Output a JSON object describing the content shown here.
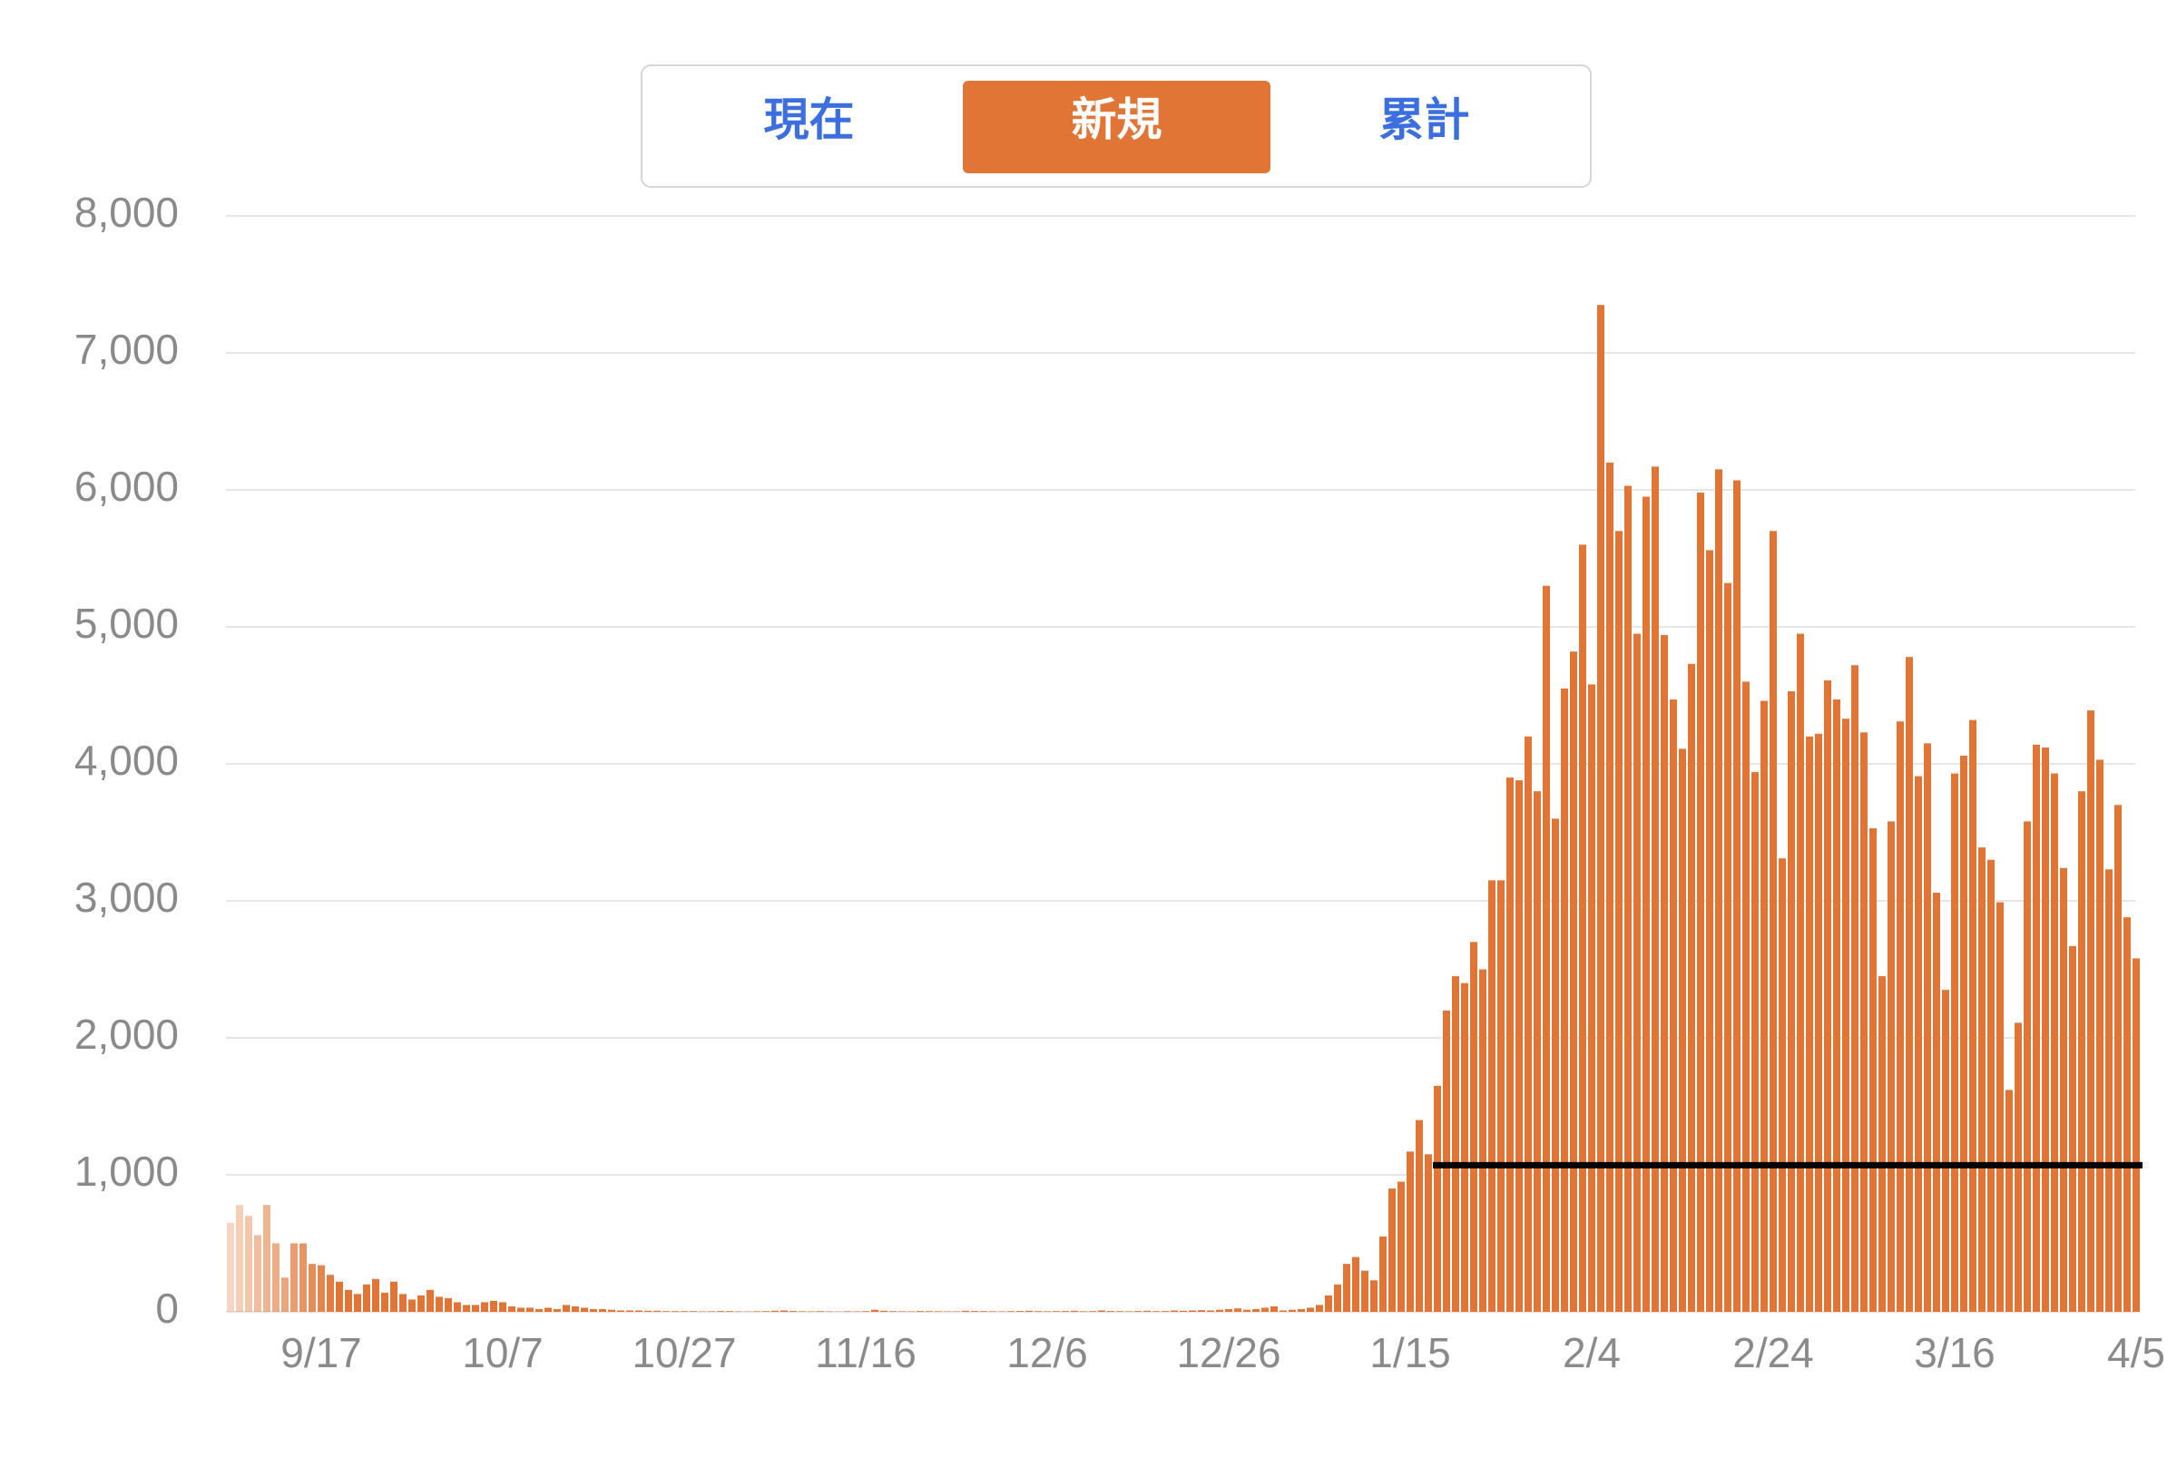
{
  "chart_data": {
    "type": "bar",
    "tabs": [
      "現在",
      "新規",
      "累計"
    ],
    "selected_tab": 1,
    "color": "#e07535",
    "grid": true,
    "categories": [
      null,
      null,
      null,
      null,
      null,
      null,
      null,
      null,
      null,
      null,
      "9/17",
      null,
      null,
      null,
      null,
      null,
      null,
      null,
      null,
      null,
      null,
      null,
      null,
      null,
      null,
      null,
      null,
      null,
      null,
      null,
      "10/7",
      null,
      null,
      null,
      null,
      null,
      null,
      null,
      null,
      null,
      null,
      null,
      null,
      null,
      null,
      null,
      null,
      null,
      null,
      null,
      "10/27",
      null,
      null,
      null,
      null,
      null,
      null,
      null,
      null,
      null,
      null,
      null,
      null,
      null,
      null,
      null,
      null,
      null,
      null,
      null,
      "11/16",
      null,
      null,
      null,
      null,
      null,
      null,
      null,
      null,
      null,
      null,
      null,
      null,
      null,
      null,
      null,
      null,
      null,
      null,
      null,
      "12/6",
      null,
      null,
      null,
      null,
      null,
      null,
      null,
      null,
      null,
      null,
      null,
      null,
      null,
      null,
      null,
      null,
      null,
      null,
      null,
      "12/26",
      null,
      null,
      null,
      null,
      null,
      null,
      null,
      null,
      null,
      null,
      null,
      null,
      null,
      null,
      null,
      null,
      null,
      null,
      null,
      "1/15",
      null,
      null,
      null,
      null,
      null,
      null,
      null,
      null,
      null,
      null,
      null,
      null,
      null,
      null,
      null,
      null,
      null,
      null,
      null,
      "2/4",
      null,
      null,
      null,
      null,
      null,
      null,
      null,
      null,
      null,
      null,
      null,
      null,
      null,
      null,
      null,
      null,
      null,
      null,
      null,
      "2/24",
      null,
      null,
      null,
      null,
      null,
      null,
      null,
      null,
      null,
      null,
      null,
      null,
      null,
      null,
      null,
      null,
      null,
      null,
      null,
      "3/16",
      null,
      null,
      null,
      null,
      null,
      null,
      null,
      null,
      null,
      null,
      null,
      null,
      null,
      null,
      null,
      null,
      null,
      null,
      null,
      "4/5"
    ],
    "values": [
      650,
      780,
      700,
      560,
      780,
      500,
      250,
      500,
      500,
      350,
      340,
      270,
      220,
      160,
      130,
      200,
      240,
      140,
      220,
      130,
      90,
      120,
      160,
      110,
      100,
      70,
      50,
      50,
      70,
      80,
      70,
      40,
      30,
      30,
      20,
      30,
      20,
      50,
      40,
      30,
      20,
      20,
      15,
      10,
      10,
      10,
      8,
      8,
      5,
      5,
      5,
      5,
      3,
      4,
      6,
      5,
      3,
      2,
      4,
      5,
      8,
      10,
      6,
      4,
      3,
      5,
      3,
      2,
      4,
      3,
      5,
      15,
      8,
      5,
      4,
      3,
      6,
      5,
      4,
      3,
      3,
      8,
      6,
      5,
      4,
      3,
      5,
      6,
      8,
      5,
      4,
      5,
      6,
      8,
      4,
      5,
      10,
      6,
      5,
      4,
      6,
      8,
      5,
      6,
      10,
      8,
      10,
      12,
      10,
      15,
      20,
      25,
      15,
      20,
      30,
      40,
      10,
      15,
      20,
      30,
      50,
      120,
      200,
      350,
      400,
      300,
      230,
      550,
      900,
      950,
      1170,
      1400,
      1150,
      1650,
      2200,
      2450,
      2400,
      2700,
      2500,
      3150,
      3150,
      3900,
      3880,
      4200,
      3800,
      5300,
      3600,
      4550,
      4820,
      5600,
      4580,
      7350,
      6200,
      5700,
      6030,
      4950,
      5950,
      6170,
      4940,
      4470,
      4110,
      4730,
      5980,
      5560,
      6150,
      5320,
      6070,
      4600,
      3940,
      4460,
      5700,
      3310,
      4530,
      4950,
      4200,
      4220,
      4610,
      4470,
      4330,
      4720,
      4230,
      3530,
      2450,
      3580,
      4310,
      4780,
      3910,
      4150,
      3060,
      2350,
      3930,
      4060,
      4320,
      3390,
      3300,
      2990,
      1620,
      2110,
      3580,
      4140,
      4120,
      3930,
      3240,
      2670,
      3800,
      4390,
      4030,
      3230,
      3700,
      2880,
      2580
    ],
    "ylim": [
      0,
      8000
    ],
    "yticks": [
      0,
      {
        "value": 1000,
        "label": "1,000"
      },
      {
        "value": 2000,
        "label": "2,000"
      },
      {
        "value": 3000,
        "label": "3,000"
      },
      {
        "value": 4000,
        "label": "4,000"
      },
      {
        "value": 5000,
        "label": "5,000"
      },
      {
        "value": 6000,
        "label": "6,000"
      },
      {
        "value": 7000,
        "label": "7,000"
      },
      {
        "value": 8000,
        "label": "8,000"
      }
    ],
    "reference_line": {
      "value": 1070,
      "start_index": 133,
      "color": "#000000"
    }
  }
}
